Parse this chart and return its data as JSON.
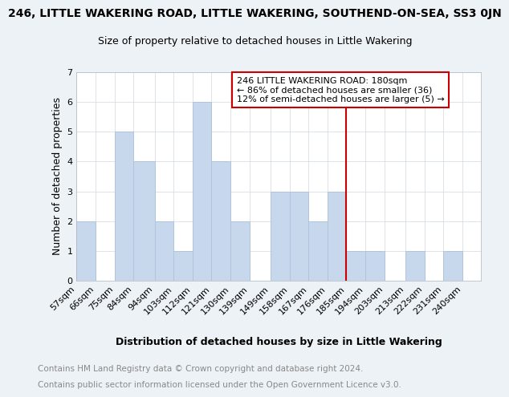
{
  "title": "246, LITTLE WAKERING ROAD, LITTLE WAKERING, SOUTHEND-ON-SEA, SS3 0JN",
  "subtitle": "Size of property relative to detached houses in Little Wakering",
  "xlabel": "Distribution of detached houses by size in Little Wakering",
  "ylabel": "Number of detached properties",
  "bin_labels": [
    "57sqm",
    "66sqm",
    "75sqm",
    "84sqm",
    "94sqm",
    "103sqm",
    "112sqm",
    "121sqm",
    "130sqm",
    "139sqm",
    "149sqm",
    "158sqm",
    "167sqm",
    "176sqm",
    "185sqm",
    "194sqm",
    "203sqm",
    "213sqm",
    "222sqm",
    "231sqm",
    "240sqm"
  ],
  "bin_left_edges": [
    57,
    66,
    75,
    84,
    94,
    103,
    112,
    121,
    130,
    139,
    149,
    158,
    167,
    176,
    185,
    194,
    203,
    213,
    222,
    231,
    240
  ],
  "bin_widths": [
    9,
    9,
    9,
    10,
    9,
    9,
    9,
    9,
    9,
    10,
    9,
    9,
    9,
    9,
    9,
    9,
    10,
    9,
    9,
    9,
    9
  ],
  "bar_heights": [
    2,
    0,
    5,
    4,
    2,
    1,
    6,
    4,
    2,
    0,
    3,
    3,
    2,
    3,
    1,
    1,
    0,
    1,
    0,
    1,
    0
  ],
  "bar_color": "#c8d8ec",
  "bar_edge_color": "#b0c4de",
  "property_line_x": 185,
  "property_line_color": "#cc0000",
  "annotation_title": "246 LITTLE WAKERING ROAD: 180sqm",
  "annotation_line1": "← 86% of detached houses are smaller (36)",
  "annotation_line2": "12% of semi-detached houses are larger (5) →",
  "annotation_box_edgecolor": "#cc0000",
  "ylim": [
    0,
    7
  ],
  "yticks": [
    0,
    1,
    2,
    3,
    4,
    5,
    6,
    7
  ],
  "footer1": "Contains HM Land Registry data © Crown copyright and database right 2024.",
  "footer2": "Contains public sector information licensed under the Open Government Licence v3.0.",
  "background_color": "#edf2f7",
  "plot_bg_color": "#ffffff",
  "title_fontsize": 10,
  "subtitle_fontsize": 9,
  "xlabel_fontsize": 9,
  "ylabel_fontsize": 9,
  "tick_fontsize": 8,
  "annotation_fontsize": 8,
  "footer_fontsize": 7.5
}
